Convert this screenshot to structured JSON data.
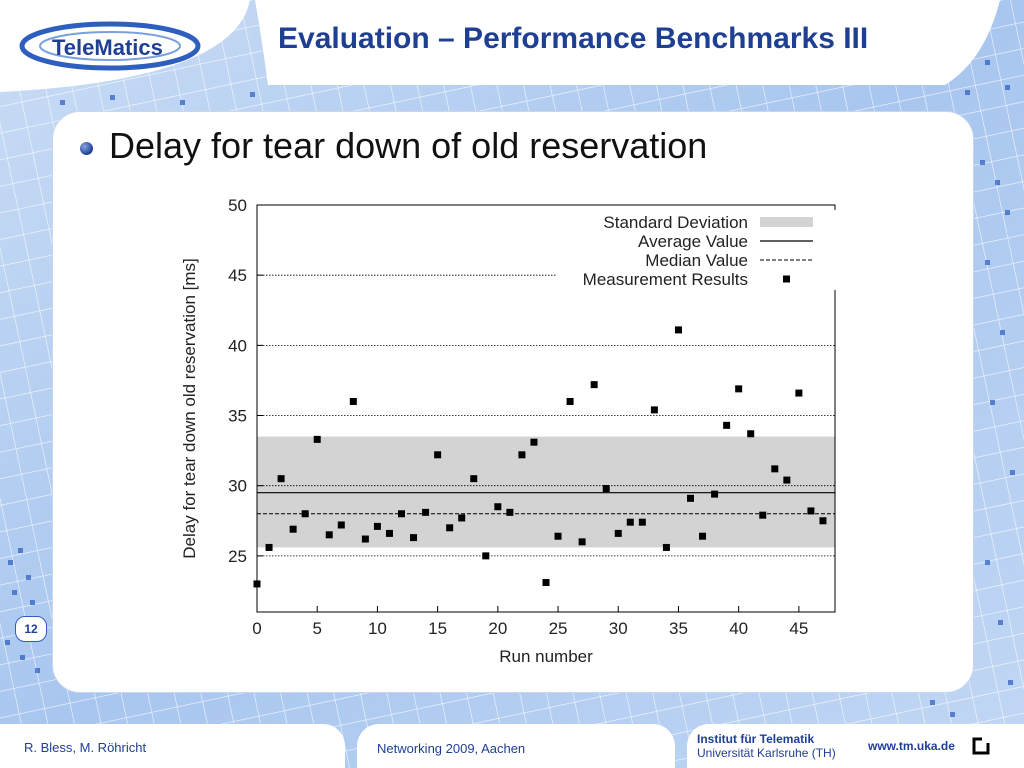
{
  "slide": {
    "title": "Evaluation – Performance Benchmarks III",
    "bullet": "Delay for tear down of old reservation",
    "slide_number": "12",
    "logo_text": "TeleMatics"
  },
  "footer": {
    "authors": "R. Bless, M. Röhricht",
    "event": "Networking 2009, Aachen",
    "institute": "Institut für Telematik",
    "university": "Universität Karlsruhe (TH)",
    "url": "www.tm.uka.de"
  },
  "colors": {
    "title": "#1f3f93",
    "stddev_band": "#d3d3d3",
    "points": "#000000"
  },
  "chart_data": {
    "type": "scatter",
    "xlabel": "Run number",
    "ylabel": "Delay for tear down old reservation [ms]",
    "xlim": [
      0,
      48
    ],
    "ylim": [
      21,
      50
    ],
    "xticks": [
      0,
      5,
      10,
      15,
      20,
      25,
      30,
      35,
      40,
      45
    ],
    "yticks": [
      25,
      30,
      35,
      40,
      45,
      50
    ],
    "grid_y": [
      25,
      30,
      35,
      40,
      45
    ],
    "legend_position": "top-right",
    "legend": [
      "Standard Deviation",
      "Average Value",
      "Median Value",
      "Measurement Results"
    ],
    "std_band": [
      25.6,
      33.5
    ],
    "average": 29.5,
    "median": 28.0,
    "points": [
      [
        0,
        23.0
      ],
      [
        1,
        25.6
      ],
      [
        2,
        30.5
      ],
      [
        3,
        26.9
      ],
      [
        4,
        28.0
      ],
      [
        5,
        33.3
      ],
      [
        6,
        26.5
      ],
      [
        7,
        27.2
      ],
      [
        8,
        36.0
      ],
      [
        9,
        26.2
      ],
      [
        10,
        27.1
      ],
      [
        11,
        26.6
      ],
      [
        12,
        28.0
      ],
      [
        13,
        26.3
      ],
      [
        14,
        28.1
      ],
      [
        15,
        32.2
      ],
      [
        16,
        27.0
      ],
      [
        17,
        27.7
      ],
      [
        18,
        30.5
      ],
      [
        19,
        25.0
      ],
      [
        20,
        28.5
      ],
      [
        21,
        28.1
      ],
      [
        22,
        32.2
      ],
      [
        23,
        33.1
      ],
      [
        24,
        23.1
      ],
      [
        25,
        26.4
      ],
      [
        26,
        36.0
      ],
      [
        27,
        26.0
      ],
      [
        28,
        37.2
      ],
      [
        29,
        29.8
      ],
      [
        30,
        26.6
      ],
      [
        31,
        27.4
      ],
      [
        32,
        27.4
      ],
      [
        33,
        35.4
      ],
      [
        34,
        25.6
      ],
      [
        35,
        41.1
      ],
      [
        36,
        29.1
      ],
      [
        37,
        26.4
      ],
      [
        38,
        29.4
      ],
      [
        39,
        34.3
      ],
      [
        40,
        36.9
      ],
      [
        41,
        33.7
      ],
      [
        42,
        27.9
      ],
      [
        43,
        31.2
      ],
      [
        44,
        30.4
      ],
      [
        45,
        36.6
      ],
      [
        46,
        28.2
      ],
      [
        47,
        27.5
      ]
    ]
  }
}
